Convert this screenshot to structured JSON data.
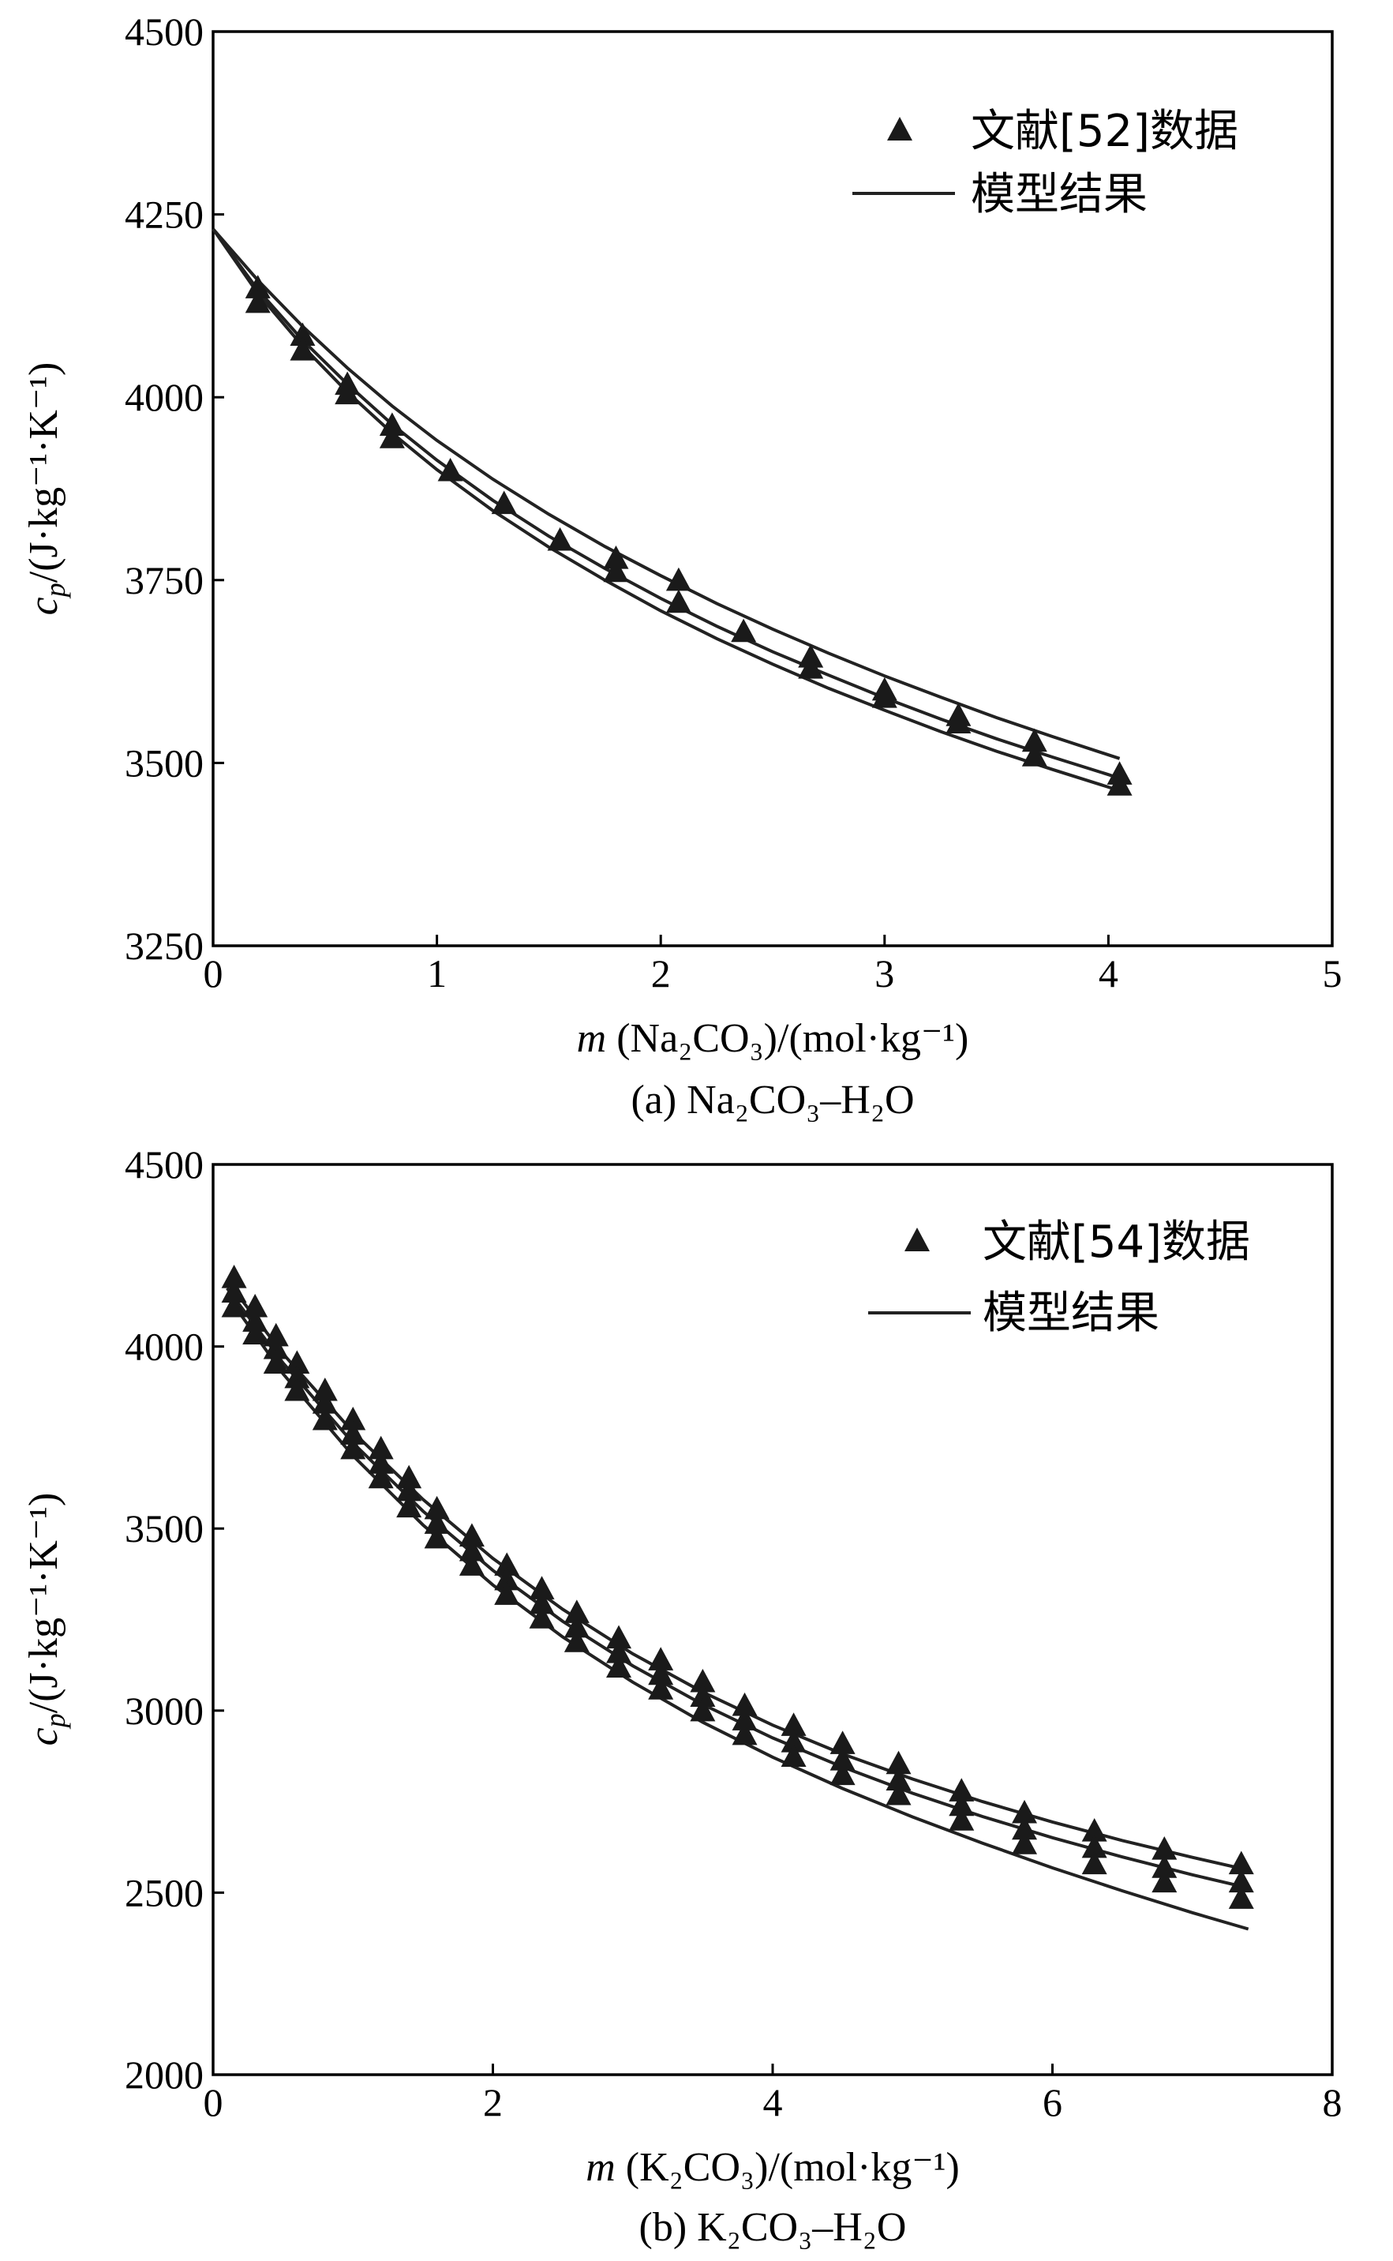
{
  "charts": [
    {
      "key": "a",
      "xlabel_m": "m",
      "xlabel_rest": " (Na₂CO₃)/(mol·kg⁻¹)",
      "ylabel_c": "c",
      "ylabel_p": "p",
      "ylabel_rest": "/(J·kg⁻¹·K⁻¹)",
      "caption": "(a) Na₂CO₃–H₂O",
      "legend_points": "文献[52]数据",
      "legend_line": "模型结果",
      "xticks": [
        "0",
        "1",
        "2",
        "3",
        "4",
        "5"
      ],
      "yticks": [
        "3250",
        "3500",
        "3750",
        "4000",
        "4250",
        "4500"
      ]
    },
    {
      "key": "b",
      "xlabel_m": "m",
      "xlabel_rest": " (K₂CO₃)/(mol·kg⁻¹)",
      "ylabel_c": "c",
      "ylabel_p": "p",
      "ylabel_rest": "/(J·kg⁻¹·K⁻¹)",
      "caption": "(b) K₂CO₃–H₂O",
      "legend_points": "文献[54]数据",
      "legend_line": "模型结果",
      "xticks": [
        "0",
        "2",
        "4",
        "6",
        "8"
      ],
      "yticks": [
        "2000",
        "2500",
        "3000",
        "3500",
        "4000",
        "4500"
      ]
    }
  ],
  "chart_data": [
    {
      "type": "scatter",
      "xlim": [
        0,
        5
      ],
      "ylim": [
        3250,
        4500
      ],
      "legend": "top-right",
      "series": [
        {
          "name": "文献[52]数据",
          "marker": "triangle",
          "x": [
            0.2,
            0.2,
            0.4,
            0.4,
            0.6,
            0.6,
            0.8,
            0.8,
            1.06,
            1.3,
            1.55,
            1.8,
            1.8,
            2.08,
            2.08,
            2.37,
            2.67,
            2.67,
            3.0,
            3.0,
            3.33,
            3.33,
            3.67,
            3.67,
            4.05,
            4.05
          ],
          "y": [
            4150,
            4130,
            4085,
            4065,
            4018,
            4005,
            3962,
            3945,
            3900,
            3855,
            3805,
            3780,
            3762,
            3750,
            3720,
            3680,
            3645,
            3630,
            3600,
            3590,
            3565,
            3555,
            3530,
            3510,
            3485,
            3470
          ]
        },
        {
          "name": "模型结果",
          "type": "line",
          "curves": [
            {
              "x": [
                0,
                0.2,
                0.4,
                0.6,
                0.8,
                1.0,
                1.25,
                1.5,
                1.75,
                2.0,
                2.25,
                2.5,
                2.75,
                3.0,
                3.25,
                3.5,
                3.75,
                4.0,
                4.05
              ],
              "y": [
                4230,
                4160,
                4097,
                4040,
                3988,
                3941,
                3888,
                3840,
                3796,
                3756,
                3718,
                3683,
                3650,
                3619,
                3590,
                3562,
                3536,
                3511,
                3506
              ]
            },
            {
              "x": [
                0,
                0.2,
                0.4,
                0.6,
                0.8,
                1.0,
                1.25,
                1.5,
                1.75,
                2.0,
                2.25,
                2.5,
                2.75,
                3.0,
                3.25,
                3.5,
                3.75,
                4.0,
                4.05
              ],
              "y": [
                4230,
                4147,
                4078,
                4018,
                3963,
                3914,
                3859,
                3810,
                3766,
                3725,
                3687,
                3652,
                3620,
                3589,
                3560,
                3533,
                3508,
                3484,
                3479
              ]
            },
            {
              "x": [
                0,
                0.2,
                0.4,
                0.6,
                0.8,
                1.0,
                1.25,
                1.5,
                1.75,
                2.0,
                2.25,
                2.5,
                2.75,
                3.0,
                3.25,
                3.5,
                3.75,
                4.0,
                4.05
              ],
              "y": [
                4230,
                4142,
                4070,
                4007,
                3951,
                3901,
                3845,
                3795,
                3750,
                3708,
                3670,
                3635,
                3602,
                3572,
                3543,
                3516,
                3491,
                3467,
                3462
              ]
            }
          ]
        }
      ]
    },
    {
      "type": "scatter",
      "xlim": [
        0,
        8
      ],
      "ylim": [
        2000,
        4500
      ],
      "legend": "top-right",
      "series": [
        {
          "name": "文献[54]数据",
          "marker": "triangle",
          "x": [
            0.15,
            0.3,
            0.45,
            0.6,
            0.8,
            1.0,
            1.2,
            1.4,
            1.6,
            1.85,
            2.1,
            2.35,
            2.6,
            2.9,
            3.2,
            3.5,
            3.8,
            4.15,
            4.5,
            4.9,
            5.35,
            5.8,
            6.3,
            6.8,
            7.35,
            0.15,
            0.3,
            0.45,
            0.6,
            0.8,
            1.0,
            1.2,
            1.4,
            1.6,
            1.85,
            2.1,
            2.35,
            2.6,
            2.9,
            3.2,
            3.5,
            3.8,
            4.15,
            4.5,
            4.9,
            5.35,
            5.8,
            6.3,
            6.8,
            7.35,
            0.15,
            0.3,
            0.45,
            0.6,
            0.8,
            1.0,
            1.2,
            1.4,
            1.6,
            1.85,
            2.1,
            2.35,
            2.6,
            2.9,
            3.2,
            3.5,
            3.8,
            4.15,
            4.5,
            4.9,
            5.35,
            5.8,
            6.3,
            6.8,
            7.35
          ],
          "y": [
            4190,
            4110,
            4030,
            3955,
            3880,
            3800,
            3720,
            3640,
            3555,
            3480,
            3400,
            3335,
            3270,
            3200,
            3140,
            3080,
            3015,
            2960,
            2910,
            2855,
            2780,
            2720,
            2670,
            2620,
            2580,
            4150,
            4070,
            3995,
            3915,
            3845,
            3760,
            3680,
            3605,
            3515,
            3440,
            3360,
            3295,
            3230,
            3160,
            3100,
            3040,
            2975,
            2915,
            2865,
            2810,
            2740,
            2675,
            2625,
            2570,
            2530,
            4110,
            4035,
            3955,
            3880,
            3800,
            3720,
            3640,
            3560,
            3475,
            3400,
            3320,
            3255,
            3190,
            3120,
            3060,
            3000,
            2935,
            2875,
            2825,
            2770,
            2700,
            2635,
            2580,
            2530,
            2485
          ]
        },
        {
          "name": "模型结果",
          "type": "line",
          "curves": [
            {
              "x": [
                0.1,
                0.5,
                1.0,
                1.5,
                2.0,
                2.5,
                3.0,
                3.5,
                4.0,
                4.5,
                5.0,
                5.5,
                6.0,
                6.5,
                7.0,
                7.4
              ],
              "y": [
                4180,
                3980,
                3765,
                3580,
                3418,
                3278,
                3156,
                3051,
                2960,
                2881,
                2812,
                2750,
                2694,
                2643,
                2597,
                2562
              ]
            },
            {
              "x": [
                0.1,
                0.5,
                1.0,
                1.5,
                2.0,
                2.5,
                3.0,
                3.5,
                4.0,
                4.5,
                5.0,
                5.5,
                6.0,
                6.5,
                7.0,
                7.4
              ],
              "y": [
                4160,
                3955,
                3735,
                3548,
                3385,
                3245,
                3123,
                3017,
                2925,
                2845,
                2773,
                2709,
                2651,
                2598,
                2549,
                2513
              ]
            },
            {
              "x": [
                0.1,
                0.5,
                1.0,
                1.5,
                2.0,
                2.5,
                3.0,
                3.5,
                4.0,
                4.5,
                5.0,
                5.5,
                6.0,
                6.5,
                7.0,
                7.4
              ],
              "y": [
                4140,
                3925,
                3700,
                3510,
                3345,
                3202,
                3078,
                2968,
                2872,
                2786,
                2708,
                2636,
                2568,
                2505,
                2445,
                2400
              ]
            }
          ]
        }
      ]
    }
  ]
}
